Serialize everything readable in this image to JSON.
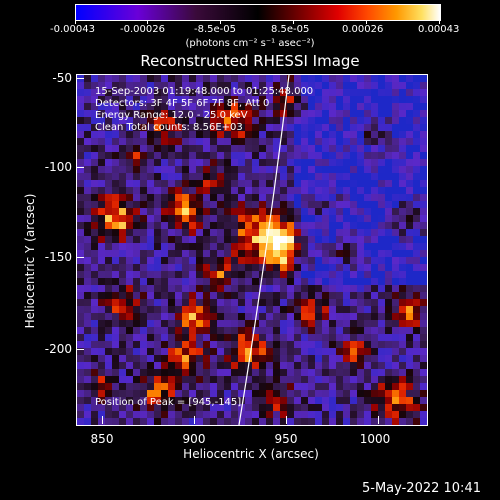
{
  "colorbar": {
    "tick_labels": [
      "-0.00043",
      "-0.00026",
      "-8.5e-05",
      "8.5e-05",
      "0.00026",
      "0.00043"
    ],
    "units": "(photons cm⁻² s⁻¹ asec⁻²)"
  },
  "title": "Reconstructed RHESSI Image",
  "info": {
    "line1": "15-Sep-2003 01:19:48.000 to 01:25:48.000",
    "line2": "Detectors: 3F 4F 5F 6F 7F 8F, Att 0",
    "line3": "Energy Range: 12.0 - 25.0 keV",
    "line4": "Clean     Total counts: 8.56E+03",
    "peak": "Position of Peak = [945,-145]"
  },
  "axes": {
    "xlabel": "Heliocentric X (arcsec)",
    "ylabel": "Heliocentric Y (arcsec)",
    "xticks": [
      "850",
      "900",
      "950",
      "1000"
    ],
    "yticks": [
      "-50",
      "-100",
      "-150",
      "-200"
    ]
  },
  "footer_date": "5-May-2022 10:41",
  "colors": {
    "background": "#000000",
    "text": "#ffffff"
  }
}
